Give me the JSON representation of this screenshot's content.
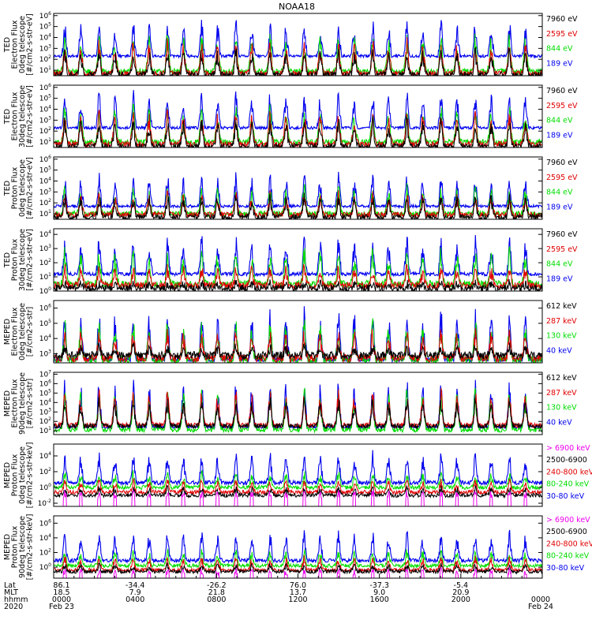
{
  "chart_data": {
    "type": "line",
    "title": "NOAA18",
    "panels": [
      {
        "id": "ted-e-0",
        "ylabel": [
          "TED",
          "Electron Flux",
          "0deg telescope",
          "[#/cm2-s-str-eV]"
        ],
        "yexp": [
          1,
          2,
          3,
          4,
          5,
          6
        ],
        "ymin_exp": 0.5,
        "ymax_exp": 6.2,
        "series": [
          {
            "name": "7960 eV",
            "color": "#000000"
          },
          {
            "name": "2595 eV",
            "color": "#e00000"
          },
          {
            "name": "844 eV",
            "color": "#00dd00"
          },
          {
            "name": "189 eV",
            "color": "#0000ee"
          }
        ],
        "profile": {
          "black": [
            0.6,
            3.0
          ],
          "red": [
            0.7,
            3.8
          ],
          "green": [
            0.9,
            4.5
          ],
          "blue": [
            2.3,
            5.5
          ],
          "baseline_blue": 2.3,
          "mode": "ted"
        }
      },
      {
        "id": "ted-e-30",
        "ylabel": [
          "TED",
          "Electron Flux",
          "30deg telescope",
          "[#/cm2-s-str-eV]"
        ],
        "yexp": [
          1,
          2,
          3,
          4,
          5,
          6
        ],
        "ymin_exp": 0.5,
        "ymax_exp": 6.2,
        "series": [
          {
            "name": "7960 eV",
            "color": "#000000"
          },
          {
            "name": "2595 eV",
            "color": "#e00000"
          },
          {
            "name": "844 eV",
            "color": "#00dd00"
          },
          {
            "name": "189 eV",
            "color": "#0000ee"
          }
        ],
        "profile": {
          "black": [
            0.6,
            3.2
          ],
          "red": [
            0.8,
            3.9
          ],
          "green": [
            1.0,
            4.4
          ],
          "blue": [
            2.3,
            5.6
          ],
          "baseline_blue": 2.3,
          "mode": "ted"
        }
      },
      {
        "id": "ted-p-0",
        "ylabel": [
          "TED",
          "Proton Flux",
          "0deg telescope",
          "[#/cm2-s-str-eV]"
        ],
        "yexp": [
          1,
          2,
          3,
          4,
          5,
          6
        ],
        "ymin_exp": 0.5,
        "ymax_exp": 6.2,
        "series": [
          {
            "name": "7960 eV",
            "color": "#000000"
          },
          {
            "name": "2595 eV",
            "color": "#e00000"
          },
          {
            "name": "844 eV",
            "color": "#00dd00"
          },
          {
            "name": "189 eV",
            "color": "#0000ee"
          }
        ],
        "profile": {
          "black": [
            0.7,
            2.8
          ],
          "red": [
            0.9,
            3.0
          ],
          "green": [
            1.0,
            3.6
          ],
          "blue": [
            1.7,
            4.6
          ],
          "baseline_blue": 1.7,
          "mode": "tedp"
        }
      },
      {
        "id": "ted-p-30",
        "ylabel": [
          "TED",
          "Proton Flux",
          "30deg telescope",
          "[#/cm2-s-str-eV]"
        ],
        "yexp": [
          0,
          1,
          2,
          3,
          4
        ],
        "ymin_exp": 0,
        "ymax_exp": 4.4,
        "series": [
          {
            "name": "7960 eV",
            "color": "#000000"
          },
          {
            "name": "2595 eV",
            "color": "#e00000"
          },
          {
            "name": "844 eV",
            "color": "#00dd00"
          },
          {
            "name": "189 eV",
            "color": "#0000ee"
          }
        ],
        "profile": {
          "black": [
            0.2,
            0.6
          ],
          "red": [
            0.4,
            1.8
          ],
          "green": [
            0.5,
            3.0
          ],
          "blue": [
            1.2,
            3.8
          ],
          "baseline_blue": 1.2,
          "mode": "tedp"
        }
      },
      {
        "id": "meped-e-0",
        "ylabel": [
          "MEPED",
          "Electron Flux",
          "0deg telescope",
          "[#/cm2-s-str]"
        ],
        "yexp": [
          3,
          4,
          5,
          6
        ],
        "ymin_exp": 2.4,
        "ymax_exp": 6.5,
        "series": [
          {
            "name": "612 keV",
            "color": "#000000"
          },
          {
            "name": "287 keV",
            "color": "#e00000"
          },
          {
            "name": "130 keV",
            "color": "#00dd00"
          },
          {
            "name": "40 keV",
            "color": "#0000ee"
          }
        ],
        "profile": {
          "black": [
            2.9,
            3.5
          ],
          "red": [
            2.7,
            4.6
          ],
          "green": [
            2.6,
            5.2
          ],
          "blue": [
            2.6,
            5.9
          ],
          "baseline_blue": 2.6,
          "mode": "meped"
        }
      },
      {
        "id": "meped-e-90",
        "ylabel": [
          "MEPED",
          "Electron Flux",
          "90deg telescope",
          "[#/cm2-s-str]"
        ],
        "yexp": [
          1,
          2,
          3,
          4,
          5,
          6,
          7
        ],
        "ymin_exp": 0.6,
        "ymax_exp": 7.2,
        "series": [
          {
            "name": "612 keV",
            "color": "#000000"
          },
          {
            "name": "287 keV",
            "color": "#e00000"
          },
          {
            "name": "130 keV",
            "color": "#00dd00"
          },
          {
            "name": "40 keV",
            "color": "#0000ee"
          }
        ],
        "profile": {
          "black": [
            1.5,
            4.5
          ],
          "red": [
            1.6,
            5.3
          ],
          "green": [
            1.1,
            5.6
          ],
          "blue": [
            1.2,
            6.6
          ],
          "baseline_blue": 1.4,
          "mode": "meped"
        }
      },
      {
        "id": "meped-p-0",
        "ylabel": [
          "MEPED",
          "Proton Flux",
          "0deg telescope",
          "[#/cm2-s-str-keV]"
        ],
        "yexp": [
          -2,
          0,
          2,
          4
        ],
        "ymin_exp": -2.4,
        "ymax_exp": 5.5,
        "series": [
          {
            "name": "> 6900 keV",
            "color": "#ee00ee"
          },
          {
            "name": "2500-6900",
            "color": "#000000"
          },
          {
            "name": "240-800 keV",
            "color": "#e00000"
          },
          {
            "name": "80-240 keV",
            "color": "#00dd00"
          },
          {
            "name": "30-80 keV",
            "color": "#0000ee"
          }
        ],
        "profile": {
          "magenta": [
            -1.6,
            -0.5
          ],
          "black": [
            -1.0,
            0.0
          ],
          "red": [
            -0.6,
            1.0
          ],
          "green": [
            0.0,
            2.0
          ],
          "blue": [
            0.6,
            4.5
          ],
          "baseline_blue": 0.6,
          "mode": "mepedp"
        }
      },
      {
        "id": "meped-p-90",
        "ylabel": [
          "MEPED",
          "Proton Flux",
          "90deg telescope",
          "[#/cm2-s-str-keV]"
        ],
        "yexp": [
          0,
          2,
          4,
          6
        ],
        "ymin_exp": -1.5,
        "ymax_exp": 7.0,
        "series": [
          {
            "name": "> 6900 keV",
            "color": "#ee00ee"
          },
          {
            "name": "2500-6900",
            "color": "#000000"
          },
          {
            "name": "240-800 keV",
            "color": "#e00000"
          },
          {
            "name": "80-240 keV",
            "color": "#00dd00"
          },
          {
            "name": "30-80 keV",
            "color": "#0000ee"
          }
        ],
        "profile": {
          "magenta": [
            -1.2,
            -0.3
          ],
          "black": [
            -0.6,
            0.4
          ],
          "red": [
            -0.4,
            1.4
          ],
          "green": [
            0.2,
            2.4
          ],
          "blue": [
            0.9,
            5.0
          ],
          "baseline_blue": 1.0,
          "mode": "mepedp"
        }
      }
    ],
    "x_axis": {
      "row_labels": [
        "Lat",
        "MLT",
        "hhmm",
        "2020"
      ],
      "ticks": [
        {
          "lat": "86.1",
          "mlt": "18.5",
          "hhmm": "0000",
          "date": "Feb 23"
        },
        {
          "lat": "-34.4",
          "mlt": "7.9",
          "hhmm": "0400",
          "date": ""
        },
        {
          "lat": "-26.2",
          "mlt": "21.8",
          "hhmm": "0800",
          "date": ""
        },
        {
          "lat": "76.0",
          "mlt": "13.7",
          "hhmm": "1200",
          "date": ""
        },
        {
          "lat": "-37.3",
          "mlt": "9.0",
          "hhmm": "1600",
          "date": ""
        },
        {
          "lat": "-5.4",
          "mlt": "20.9",
          "hhmm": "2000",
          "date": ""
        },
        {
          "lat": "",
          "mlt": "",
          "hhmm": "0000",
          "date": "Feb 24"
        }
      ],
      "range_hours": [
        0,
        24
      ]
    }
  }
}
